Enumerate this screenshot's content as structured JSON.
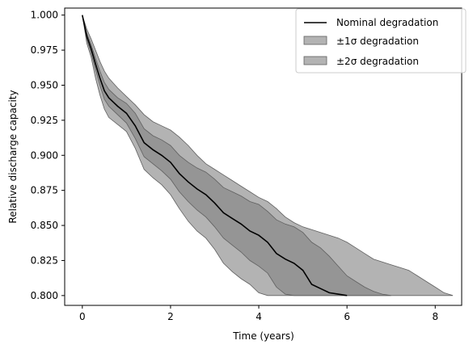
{
  "chart_data": {
    "type": "line",
    "title": "",
    "xlabel": "Time (years)",
    "ylabel": "Relative discharge capacity",
    "xlim": [
      -0.4,
      8.6
    ],
    "ylim": [
      0.793,
      1.005
    ],
    "xticks": [
      0,
      2,
      4,
      6,
      8
    ],
    "xtick_labels": [
      "0",
      "2",
      "4",
      "6",
      "8"
    ],
    "yticks": [
      0.8,
      0.825,
      0.85,
      0.875,
      0.9,
      0.925,
      0.95,
      0.975,
      1.0
    ],
    "ytick_labels": [
      "0.800",
      "0.825",
      "0.850",
      "0.875",
      "0.900",
      "0.925",
      "0.950",
      "0.975",
      "1.000"
    ],
    "grid": false,
    "legend_position": "top-right",
    "legend": {
      "nominal": "Nominal degradation",
      "sigma1": "±1σ degradation",
      "sigma2": "±2σ degradation"
    },
    "colors": {
      "nominal_line": "#000000",
      "band_fill": "#808080",
      "band_edge": "#606060"
    },
    "series": [
      {
        "name": "Nominal degradation",
        "x": [
          0,
          0.1,
          0.2,
          0.3,
          0.4,
          0.5,
          0.6,
          0.8,
          1.0,
          1.2,
          1.4,
          1.6,
          1.8,
          2.0,
          2.2,
          2.4,
          2.6,
          2.8,
          3.0,
          3.2,
          3.4,
          3.6,
          3.8,
          4.0,
          4.2,
          4.4,
          4.6,
          4.8,
          5.0,
          5.2,
          5.4,
          5.6,
          5.8,
          6.0
        ],
        "y": [
          1.0,
          0.985,
          0.976,
          0.965,
          0.955,
          0.946,
          0.941,
          0.935,
          0.93,
          0.921,
          0.909,
          0.904,
          0.9,
          0.895,
          0.887,
          0.881,
          0.876,
          0.872,
          0.866,
          0.859,
          0.855,
          0.851,
          0.846,
          0.843,
          0.838,
          0.83,
          0.826,
          0.823,
          0.818,
          0.808,
          0.805,
          0.802,
          0.801,
          0.8
        ]
      },
      {
        "name": "±1σ degradation",
        "x": [
          0,
          0.1,
          0.2,
          0.3,
          0.4,
          0.5,
          0.6,
          0.8,
          1.0,
          1.2,
          1.4,
          1.6,
          1.8,
          2.0,
          2.2,
          2.4,
          2.6,
          2.8,
          3.0,
          3.2,
          3.4,
          3.6,
          3.8,
          4.0,
          4.2,
          4.4,
          4.6,
          4.8,
          5.0,
          5.2,
          5.4,
          5.6,
          5.8,
          6.0,
          6.2,
          6.4,
          6.6,
          6.8,
          7.0
        ],
        "upper": [
          1.0,
          0.987,
          0.979,
          0.969,
          0.96,
          0.952,
          0.947,
          0.941,
          0.937,
          0.93,
          0.919,
          0.914,
          0.911,
          0.907,
          0.9,
          0.895,
          0.891,
          0.888,
          0.883,
          0.877,
          0.874,
          0.871,
          0.867,
          0.865,
          0.86,
          0.854,
          0.851,
          0.849,
          0.845,
          0.838,
          0.834,
          0.828,
          0.821,
          0.814,
          0.81,
          0.806,
          0.803,
          0.801,
          0.8
        ],
        "lower": [
          1.0,
          0.983,
          0.973,
          0.961,
          0.95,
          0.94,
          0.935,
          0.929,
          0.923,
          0.912,
          0.899,
          0.894,
          0.889,
          0.883,
          0.874,
          0.867,
          0.861,
          0.856,
          0.849,
          0.841,
          0.836,
          0.831,
          0.825,
          0.821,
          0.816,
          0.806,
          0.801,
          0.8,
          0.8,
          0.8,
          0.8,
          0.8,
          0.8,
          0.8,
          0.8,
          0.8,
          0.8,
          0.8,
          0.8
        ]
      },
      {
        "name": "±2σ degradation",
        "x": [
          0,
          0.1,
          0.2,
          0.3,
          0.4,
          0.5,
          0.6,
          0.8,
          1.0,
          1.2,
          1.4,
          1.6,
          1.8,
          2.0,
          2.2,
          2.4,
          2.6,
          2.8,
          3.0,
          3.2,
          3.4,
          3.6,
          3.8,
          4.0,
          4.2,
          4.4,
          4.5,
          4.6,
          4.8,
          5.0,
          5.2,
          5.4,
          5.6,
          5.8,
          6.0,
          6.2,
          6.4,
          6.6,
          6.8,
          7.0,
          7.2,
          7.4,
          7.6,
          7.8,
          8.0,
          8.2,
          8.4
        ],
        "upper": [
          1.0,
          0.99,
          0.983,
          0.975,
          0.967,
          0.96,
          0.955,
          0.948,
          0.942,
          0.936,
          0.929,
          0.924,
          0.921,
          0.918,
          0.913,
          0.907,
          0.9,
          0.894,
          0.89,
          0.886,
          0.882,
          0.878,
          0.874,
          0.87,
          0.867,
          0.862,
          0.859,
          0.856,
          0.852,
          0.849,
          0.847,
          0.845,
          0.843,
          0.841,
          0.838,
          0.834,
          0.83,
          0.826,
          0.824,
          0.822,
          0.82,
          0.818,
          0.814,
          0.81,
          0.806,
          0.802,
          0.8
        ],
        "lower": [
          1.0,
          0.98,
          0.97,
          0.955,
          0.943,
          0.933,
          0.927,
          0.922,
          0.917,
          0.905,
          0.89,
          0.884,
          0.879,
          0.872,
          0.862,
          0.853,
          0.846,
          0.841,
          0.833,
          0.823,
          0.817,
          0.812,
          0.808,
          0.802,
          0.8,
          0.8,
          0.8,
          0.8,
          0.8,
          0.8,
          0.8,
          0.8,
          0.8,
          0.8,
          0.8,
          0.8,
          0.8,
          0.8,
          0.8,
          0.8,
          0.8,
          0.8,
          0.8,
          0.8,
          0.8,
          0.8,
          0.8
        ]
      }
    ]
  }
}
